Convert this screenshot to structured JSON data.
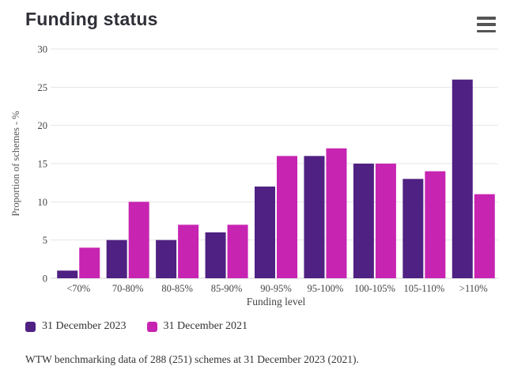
{
  "header": {
    "title": "Funding status",
    "menu_icon": "hamburger"
  },
  "chart_data": {
    "type": "bar",
    "title": "Funding status",
    "categories": [
      "<70%",
      "70-80%",
      "80-85%",
      "85-90%",
      "90-95%",
      "95-100%",
      "100-105%",
      "105-110%",
      ">110%"
    ],
    "series": [
      {
        "name": "31 December 2023",
        "color": "#4E2182",
        "values": [
          1,
          5,
          5,
          6,
          12,
          16,
          15,
          13,
          26
        ]
      },
      {
        "name": "31 December 2021",
        "color": "#C724B1",
        "values": [
          4,
          10,
          7,
          7,
          16,
          17,
          15,
          14,
          11
        ]
      }
    ],
    "xlabel": "Funding level",
    "ylabel": "Proportion of schemes - %",
    "ylim": [
      0,
      30
    ],
    "yticks": [
      0,
      5,
      10,
      15,
      20,
      25,
      30
    ],
    "grid": true,
    "legend_position": "bottom-left"
  },
  "colors": {
    "grid": "#e6e6e6",
    "zero_line": "#d4d4d4",
    "axis_text": "#444444",
    "axis_title_text": "#555555",
    "title_text": "#2f2f38",
    "menu_icon": "#555555"
  },
  "footer": {
    "text": "WTW benchmarking data of 288 (251) schemes at 31 December 2023 (2021)."
  }
}
